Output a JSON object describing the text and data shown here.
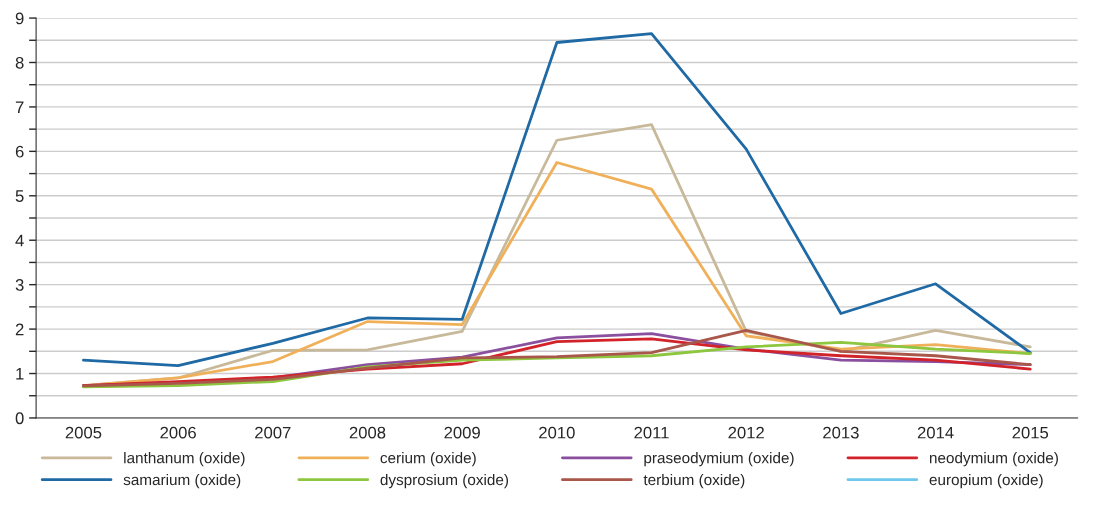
{
  "chart_data": {
    "type": "line",
    "categories": [
      "2005",
      "2006",
      "2007",
      "2008",
      "2009",
      "2010",
      "2011",
      "2012",
      "2013",
      "2014",
      "2015"
    ],
    "ylim": [
      0,
      9
    ],
    "yticks": [
      0,
      {
        "value": 0.5,
        "label": null
      },
      1,
      {
        "value": 1.5,
        "label": null
      },
      2,
      {
        "value": 2.5,
        "label": null
      },
      3,
      {
        "value": 3.5,
        "label": null
      },
      4,
      {
        "value": 4.5,
        "label": null
      },
      5,
      {
        "value": 5.5,
        "label": null
      },
      6,
      {
        "value": 6.5,
        "label": null
      },
      7,
      {
        "value": 7.5,
        "label": null
      },
      8,
      {
        "value": 8.5,
        "label": null
      },
      9
    ],
    "grid": "y",
    "legend": "bottom",
    "marker": "none",
    "line_style": "solid",
    "series": [
      {
        "name": "lanthanum (oxide)",
        "color": "#c8b99a",
        "values": [
          0.73,
          0.9,
          1.52,
          1.53,
          1.95,
          6.25,
          6.6,
          1.95,
          1.5,
          1.97,
          1.6
        ]
      },
      {
        "name": "cerium (oxide)",
        "color": "#f0b05a",
        "values": [
          0.73,
          0.9,
          1.27,
          2.17,
          2.1,
          5.75,
          5.15,
          1.85,
          1.55,
          1.65,
          1.45
        ]
      },
      {
        "name": "praseodymium (oxide)",
        "color": "#8a4f9e",
        "values": [
          0.73,
          0.8,
          0.9,
          1.2,
          1.37,
          1.8,
          1.9,
          1.55,
          1.3,
          1.27,
          1.2
        ]
      },
      {
        "name": "neodymium (oxide)",
        "color": "#d2232a",
        "values": [
          0.73,
          0.82,
          0.92,
          1.1,
          1.22,
          1.72,
          1.78,
          1.53,
          1.4,
          1.3,
          1.1
        ]
      },
      {
        "name": "samarium (oxide)",
        "color": "#1f6aa5",
        "values": [
          1.3,
          1.18,
          1.68,
          2.25,
          2.22,
          8.45,
          8.65,
          6.05,
          2.35,
          3.02,
          1.47
        ]
      },
      {
        "name": "dysprosium (oxide)",
        "color": "#8dc63f",
        "values": [
          0.7,
          0.73,
          0.82,
          1.15,
          1.3,
          1.35,
          1.4,
          1.6,
          1.7,
          1.55,
          1.45
        ]
      },
      {
        "name": "terbium (oxide)",
        "color": "#a8574a",
        "values": [
          0.72,
          0.78,
          0.87,
          1.12,
          1.35,
          1.38,
          1.47,
          1.97,
          1.5,
          1.4,
          1.2
        ]
      },
      {
        "name": "europium (oxide)",
        "color": "#6fc8ec",
        "values": [
          null,
          null,
          null,
          null,
          null,
          null,
          null,
          null,
          null,
          null,
          null
        ]
      }
    ]
  }
}
